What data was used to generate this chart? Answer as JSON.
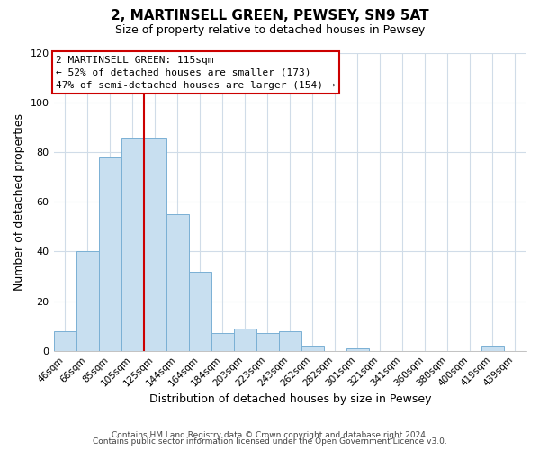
{
  "title": "2, MARTINSELL GREEN, PEWSEY, SN9 5AT",
  "subtitle": "Size of property relative to detached houses in Pewsey",
  "xlabel": "Distribution of detached houses by size in Pewsey",
  "ylabel": "Number of detached properties",
  "bar_color": "#c8dff0",
  "bar_edge_color": "#7ab0d4",
  "categories": [
    "46sqm",
    "66sqm",
    "85sqm",
    "105sqm",
    "125sqm",
    "144sqm",
    "164sqm",
    "184sqm",
    "203sqm",
    "223sqm",
    "243sqm",
    "262sqm",
    "282sqm",
    "301sqm",
    "321sqm",
    "341sqm",
    "360sqm",
    "380sqm",
    "400sqm",
    "419sqm",
    "439sqm"
  ],
  "values": [
    8,
    40,
    78,
    86,
    86,
    55,
    32,
    7,
    9,
    7,
    8,
    2,
    0,
    1,
    0,
    0,
    0,
    0,
    0,
    2,
    0
  ],
  "ylim": [
    0,
    120
  ],
  "yticks": [
    0,
    20,
    40,
    60,
    80,
    100,
    120
  ],
  "marker_label": "2 MARTINSELL GREEN: 115sqm",
  "annotation_line1": "← 52% of detached houses are smaller (173)",
  "annotation_line2": "47% of semi-detached houses are larger (154) →",
  "vline_color": "#cc0000",
  "vline_x_index": 3,
  "footer1": "Contains HM Land Registry data © Crown copyright and database right 2024.",
  "footer2": "Contains public sector information licensed under the Open Government Licence v3.0.",
  "background_color": "#ffffff",
  "grid_color": "#d0dce8"
}
